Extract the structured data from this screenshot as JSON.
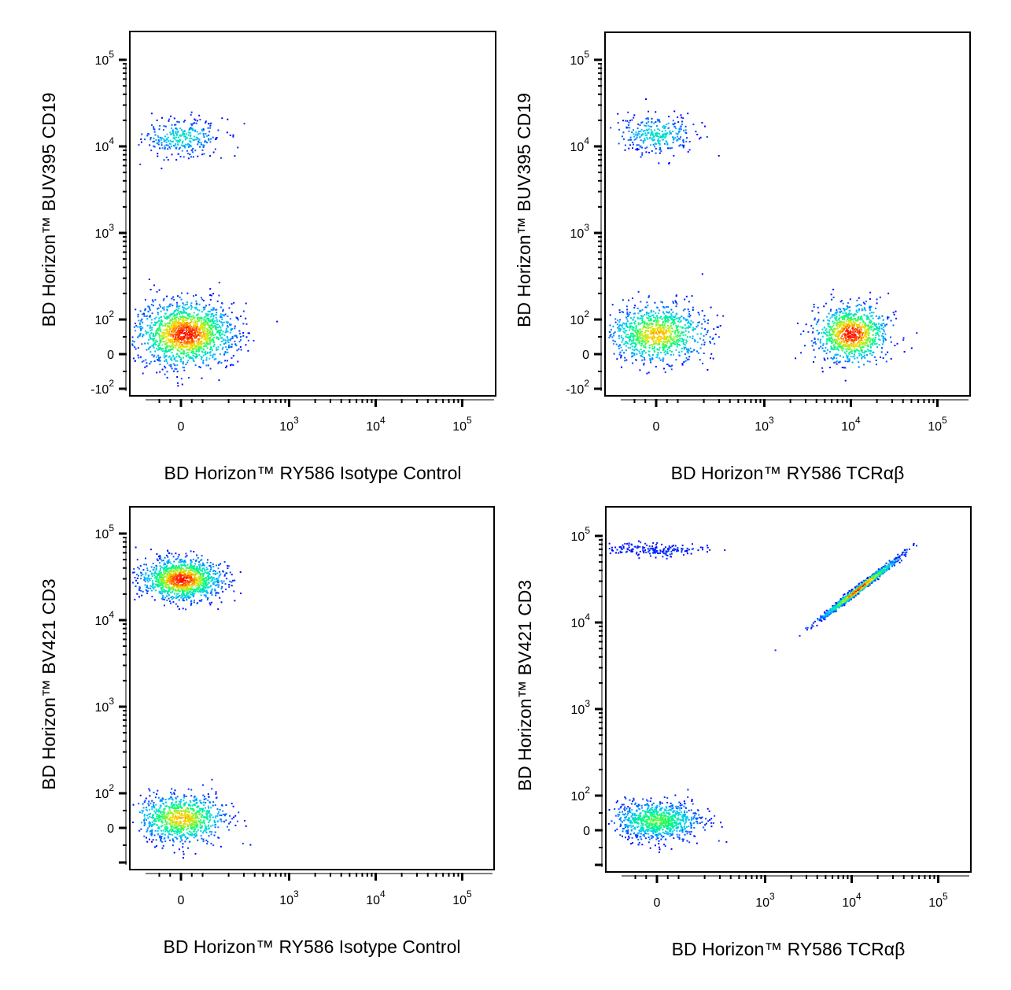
{
  "chart_data": [
    {
      "type": "scatter",
      "xlabel": "BD Horizon™ RY586 Isotype Control",
      "ylabel": "BD Horizon™ BUV395 CD19",
      "x_ticks": [
        "0",
        "10^3",
        "10^4",
        "10^5"
      ],
      "y_ticks": [
        "-10^2",
        "0",
        "10^2",
        "10^3",
        "10^4",
        "10^5"
      ],
      "x_scale": "biexponential",
      "y_scale": "biexponential",
      "populations": [
        {
          "x": 0,
          "y": 13000,
          "count": 300,
          "peak_color": "#00c8ff"
        },
        {
          "x": 20,
          "y": 60,
          "count": 1600,
          "peak_color": "#ff0000"
        }
      ]
    },
    {
      "type": "scatter",
      "xlabel": "BD Horizon™ RY586 TCRαβ",
      "ylabel": "BD Horizon™ BUV395 CD19",
      "x_ticks": [
        "0",
        "10^3",
        "10^4",
        "10^5"
      ],
      "y_ticks": [
        "-10^2",
        "0",
        "10^2",
        "10^3",
        "10^4",
        "10^5"
      ],
      "x_scale": "biexponential",
      "y_scale": "biexponential",
      "populations": [
        {
          "x": 0,
          "y": 14000,
          "count": 300,
          "peak_color": "#00c8ff"
        },
        {
          "x": 0,
          "y": 60,
          "count": 1000,
          "peak_color": "#ffcc00"
        },
        {
          "x": 10000,
          "y": 60,
          "count": 1000,
          "peak_color": "#ff0000"
        }
      ]
    },
    {
      "type": "scatter",
      "xlabel": "BD Horizon™ RY586 Isotype Control",
      "ylabel": "BD Horizon™ BV421 CD3",
      "x_ticks": [
        "0",
        "10^3",
        "10^4",
        "10^5"
      ],
      "y_ticks": [
        "0",
        "10^2",
        "10^3",
        "10^4",
        "10^5"
      ],
      "x_scale": "biexponential",
      "y_scale": "biexponential",
      "populations": [
        {
          "x": 0,
          "y": 30000,
          "count": 1300,
          "peak_color": "#ff0000"
        },
        {
          "x": 0,
          "y": 30,
          "count": 900,
          "peak_color": "#ffcc00"
        }
      ]
    },
    {
      "type": "scatter",
      "xlabel": "BD Horizon™ RY586 TCRαβ",
      "ylabel": "BD Horizon™ BV421 CD3",
      "x_ticks": [
        "0",
        "10^3",
        "10^4",
        "10^5"
      ],
      "y_ticks": [
        "0",
        "10^2",
        "10^3",
        "10^4",
        "10^5"
      ],
      "x_scale": "biexponential",
      "y_scale": "biexponential",
      "populations": [
        {
          "x": 0,
          "y": 70000,
          "count": 180,
          "peak_color": "#0000ff"
        },
        {
          "x": 12000,
          "y": 25000,
          "count": 1100,
          "peak_color": "#ff0000"
        },
        {
          "x": 0,
          "y": 30,
          "count": 900,
          "peak_color": "#00ff80"
        }
      ]
    }
  ]
}
